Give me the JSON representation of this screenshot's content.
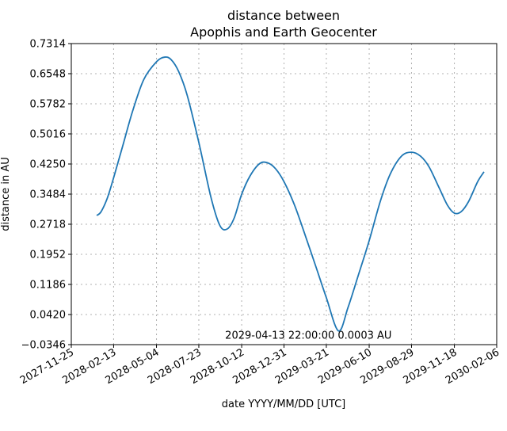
{
  "chart_data": {
    "type": "line",
    "title_line1": "distance between",
    "title_line2": "Apophis and Earth Geocenter",
    "xlabel": "date YYYY/MM/DD [UTC]",
    "ylabel": "distance in AU",
    "ylim": [
      -0.0346,
      0.7314
    ],
    "xlim": [
      "2027-11-25",
      "2030-02-06"
    ],
    "yticks": [
      "−0.0346",
      "0.0420",
      "0.1186",
      "0.1952",
      "0.2718",
      "0.3484",
      "0.4250",
      "0.5016",
      "0.5782",
      "0.6548",
      "0.7314"
    ],
    "xticks": [
      "2027-11-25",
      "2028-02-13",
      "2028-05-04",
      "2028-07-23",
      "2028-10-12",
      "2028-12-31",
      "2029-03-21",
      "2029-06-10",
      "2029-08-29",
      "2029-11-18",
      "2030-02-06"
    ],
    "grid": true,
    "line_color": "#1f77b4",
    "series": [
      {
        "x": [
          "2028-01-12",
          "2028-01-20",
          "2028-02-01",
          "2028-02-13",
          "2028-03-01",
          "2028-03-20",
          "2028-04-10",
          "2028-05-04",
          "2028-05-20",
          "2028-06-01",
          "2028-06-15",
          "2028-07-01",
          "2028-07-23",
          "2028-08-15",
          "2028-09-01",
          "2028-09-15",
          "2028-09-28",
          "2028-10-12",
          "2028-10-28",
          "2028-11-15",
          "2028-11-30",
          "2028-12-15",
          "2028-12-31",
          "2029-01-20",
          "2029-02-10",
          "2029-03-01",
          "2029-03-21",
          "2029-04-13",
          "2029-05-01",
          "2029-05-20",
          "2029-06-10",
          "2029-07-01",
          "2029-07-20",
          "2029-08-10",
          "2029-08-29",
          "2029-09-15",
          "2029-10-01",
          "2029-10-20",
          "2029-11-05",
          "2029-11-18",
          "2029-12-01",
          "2029-12-15",
          "2030-01-01",
          "2030-01-13"
        ],
        "y": [
          0.294,
          0.303,
          0.338,
          0.39,
          0.47,
          0.56,
          0.64,
          0.685,
          0.697,
          0.69,
          0.66,
          0.6,
          0.48,
          0.34,
          0.268,
          0.26,
          0.288,
          0.348,
          0.395,
          0.426,
          0.428,
          0.413,
          0.38,
          0.32,
          0.24,
          0.165,
          0.085,
          0.0003,
          0.06,
          0.14,
          0.23,
          0.33,
          0.4,
          0.445,
          0.455,
          0.445,
          0.418,
          0.365,
          0.32,
          0.3,
          0.304,
          0.33,
          0.38,
          0.405
        ]
      }
    ],
    "annotation": {
      "text": "2029-04-13 22:00:00  0.0003 AU",
      "x": "2029-04-13",
      "y": 0.0003
    }
  }
}
